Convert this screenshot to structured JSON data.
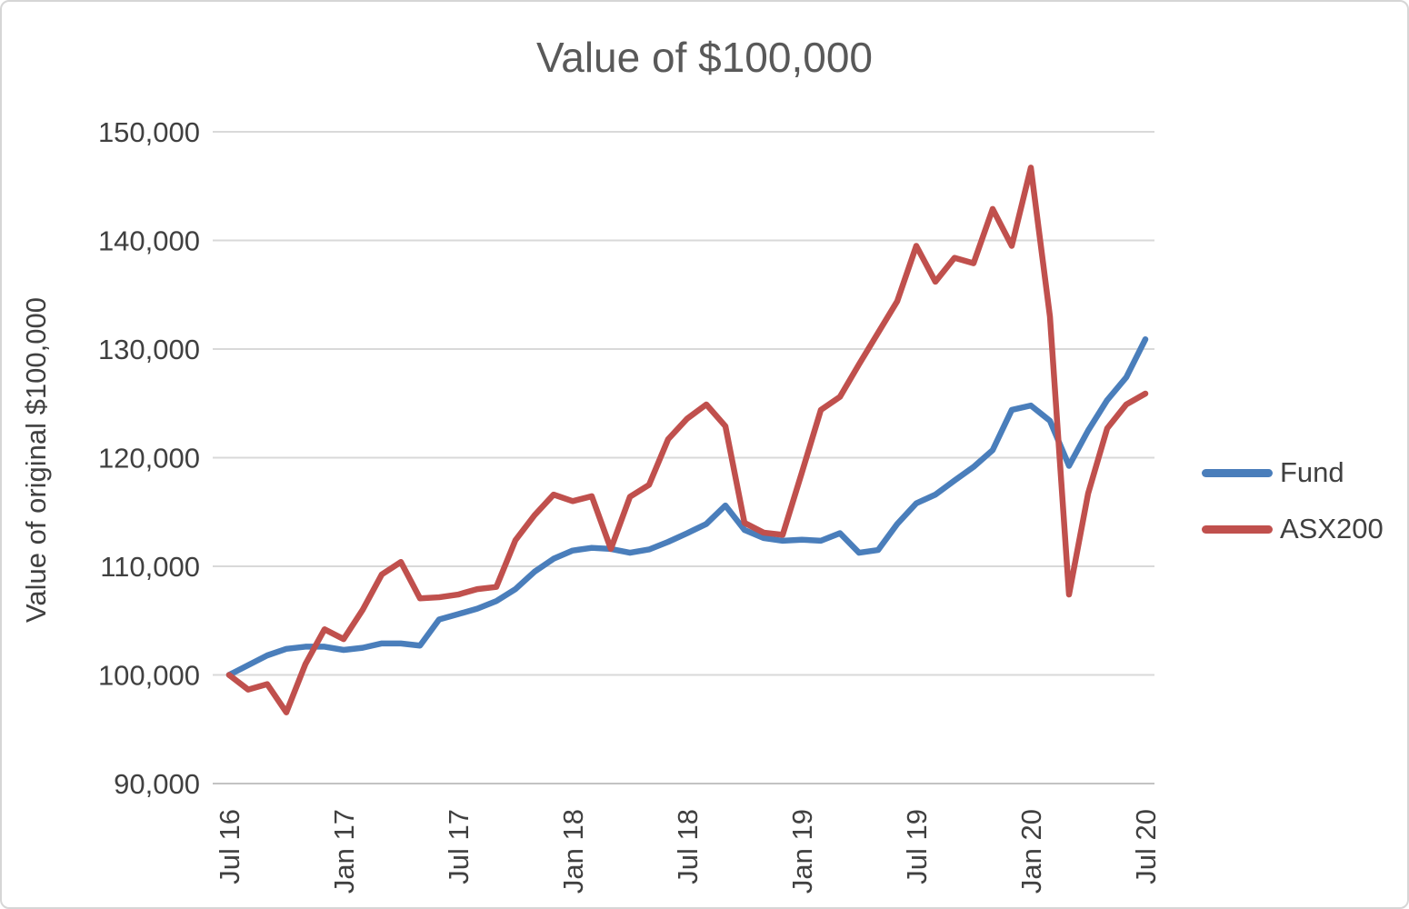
{
  "chart_data": {
    "type": "line",
    "title": "Value of $100,000",
    "ylabel": "Value of original $100,000",
    "grid": true,
    "legend_position": "right",
    "ylim": [
      90000,
      150000
    ],
    "y_ticks": [
      {
        "value": 90000,
        "label": "90,000"
      },
      {
        "value": 100000,
        "label": "100,000"
      },
      {
        "value": 110000,
        "label": "110,000"
      },
      {
        "value": 120000,
        "label": "120,000"
      },
      {
        "value": 130000,
        "label": "130,000"
      },
      {
        "value": 140000,
        "label": "140,000"
      },
      {
        "value": 150000,
        "label": "150,000"
      }
    ],
    "x_ticks": [
      {
        "index": 0,
        "label": "Jul 16"
      },
      {
        "index": 6,
        "label": "Jan 17"
      },
      {
        "index": 12,
        "label": "Jul 17"
      },
      {
        "index": 18,
        "label": "Jan 18"
      },
      {
        "index": 24,
        "label": "Jul 18"
      },
      {
        "index": 30,
        "label": "Jan 19"
      },
      {
        "index": 36,
        "label": "Jul 19"
      },
      {
        "index": 42,
        "label": "Jan 20"
      },
      {
        "index": 48,
        "label": "Jul 20"
      }
    ],
    "categories": [
      "Jul 16",
      "Aug 16",
      "Sep 16",
      "Oct 16",
      "Nov 16",
      "Dec 16",
      "Jan 17",
      "Feb 17",
      "Mar 17",
      "Apr 17",
      "May 17",
      "Jun 17",
      "Jul 17",
      "Aug 17",
      "Sep 17",
      "Oct 17",
      "Nov 17",
      "Dec 17",
      "Jan 18",
      "Feb 18",
      "Mar 18",
      "Apr 18",
      "May 18",
      "Jun 18",
      "Jul 18",
      "Aug 18",
      "Sep 18",
      "Oct 18",
      "Nov 18",
      "Dec 18",
      "Jan 19",
      "Feb 19",
      "Mar 19",
      "Apr 19",
      "May 19",
      "Jun 19",
      "Jul 19",
      "Aug 19",
      "Sep 19",
      "Oct 19",
      "Nov 19",
      "Dec 19",
      "Jan 20",
      "Feb 20",
      "Mar 20",
      "Apr 20",
      "May 20",
      "Jun 20",
      "Jul 20"
    ],
    "series": [
      {
        "name": "Fund",
        "color": "#4a7ebb",
        "values": [
          100000,
          100900,
          101800,
          102400,
          102600,
          102600,
          102300,
          102500,
          102900,
          102900,
          102700,
          105100,
          105600,
          106100,
          106800,
          107900,
          109500,
          110700,
          111450,
          111700,
          111600,
          111250,
          111550,
          112250,
          113050,
          113900,
          115600,
          113350,
          112600,
          112350,
          112450,
          112350,
          113050,
          111250,
          111500,
          113900,
          115800,
          116600,
          117900,
          119150,
          120700,
          124400,
          124800,
          123400,
          119250,
          122500,
          125300,
          127400,
          130900
        ]
      },
      {
        "name": "ASX200",
        "color": "#c0504d",
        "values": [
          100000,
          98650,
          99150,
          96550,
          101000,
          104200,
          103300,
          106000,
          109250,
          110400,
          107050,
          107150,
          107400,
          107900,
          108100,
          112400,
          114700,
          116600,
          116000,
          116450,
          111600,
          116400,
          117500,
          121700,
          123600,
          124900,
          122900,
          114000,
          113100,
          112900,
          118600,
          124400,
          125600,
          128600,
          131500,
          134400,
          139500,
          136200,
          138400,
          137900,
          142900,
          139500,
          146700,
          133000,
          107400,
          116700,
          122700,
          124900,
          125900
        ]
      }
    ],
    "style": {
      "gridline_color": "#d9d9d9",
      "axis_line_color": "#c3c3c3",
      "tick_label_color": "#404040",
      "title_color": "#595959",
      "line_width": 6.5
    }
  }
}
